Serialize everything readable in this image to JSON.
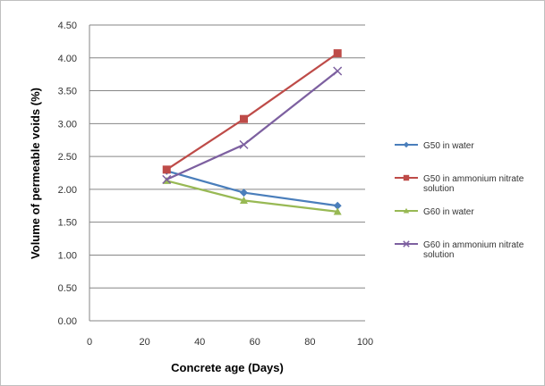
{
  "chart_data": {
    "type": "line",
    "xlabel": "Concrete age (Days)",
    "ylabel": "Volume of permeable voids (%)",
    "xlim": [
      0,
      100
    ],
    "ylim": [
      0,
      4.5
    ],
    "x_ticks": [
      "0",
      "20",
      "40",
      "60",
      "80",
      "100"
    ],
    "y_ticks": [
      "0.00",
      "0.50",
      "1.00",
      "1.50",
      "2.00",
      "2.50",
      "3.00",
      "3.50",
      "4.00",
      "4.50"
    ],
    "grid": "horizontal",
    "legend_position": "right",
    "series": [
      {
        "name": "G50 in water",
        "color": "#4a7ebb",
        "marker": "diamond",
        "points": [
          [
            28,
            2.28
          ],
          [
            56,
            1.95
          ],
          [
            90,
            1.75
          ]
        ],
        "legend_lines": [
          "G50 in water"
        ]
      },
      {
        "name": "G50 in ammonium nitrate solution",
        "color": "#be4b48",
        "marker": "square",
        "points": [
          [
            28,
            2.3
          ],
          [
            56,
            3.07
          ],
          [
            90,
            4.07
          ]
        ],
        "legend_lines": [
          "G50 in ammonium nitrate",
          "solution"
        ]
      },
      {
        "name": "G60 in water",
        "color": "#98b954",
        "marker": "triangle",
        "points": [
          [
            28,
            2.13
          ],
          [
            56,
            1.83
          ],
          [
            90,
            1.66
          ]
        ],
        "legend_lines": [
          "G60 in water"
        ]
      },
      {
        "name": "G60 in ammonium nitrate solution",
        "color": "#7d60a0",
        "marker": "x",
        "points": [
          [
            28,
            2.15
          ],
          [
            56,
            2.68
          ],
          [
            90,
            3.8
          ]
        ],
        "legend_lines": [
          "G60 in ammonium nitrate",
          "solution"
        ]
      }
    ]
  }
}
